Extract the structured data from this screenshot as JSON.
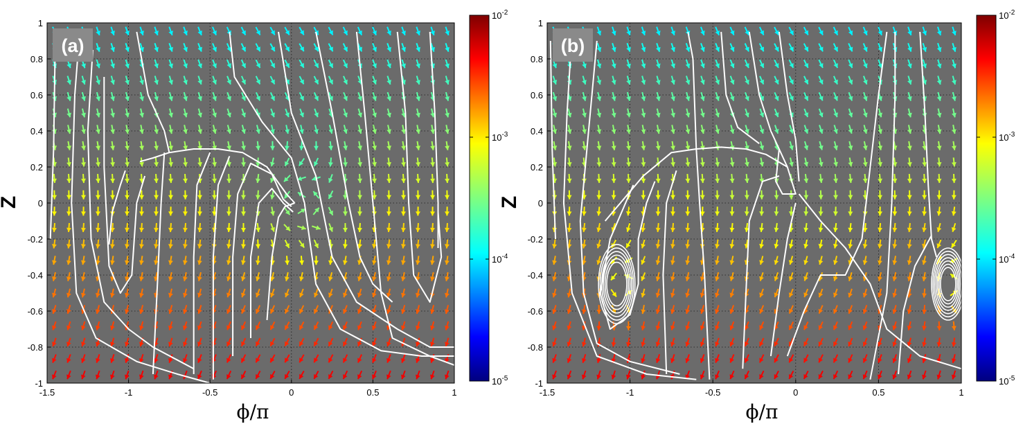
{
  "chart_data": [
    {
      "type": "quiver-streamplot",
      "panel_label": "(a)",
      "xlabel": "ϕ/π",
      "ylabel": "Z",
      "xlim": [
        -1.5,
        1
      ],
      "ylim": [
        -1,
        1
      ],
      "x_ticks": [
        "-1.5",
        "-1",
        "-0.5",
        "0",
        "0.5",
        "1"
      ],
      "y_ticks": [
        "-1",
        "-0.8",
        "-0.6",
        "-0.4",
        "-0.2",
        "0",
        "0.2",
        "0.4",
        "0.6",
        "0.8",
        "1"
      ],
      "grid": true,
      "background_color": "#6b6b6b",
      "streamline_color": "#ffffff",
      "features": {
        "spiral_focus": [
          0.02,
          0.0
        ],
        "saddle_points": [
          [
            -1.1,
            0.18
          ],
          [
            0.9,
            0.0
          ]
        ],
        "ridge_peak": [
          -0.45,
          0.3
        ]
      },
      "colorbar": {
        "scale": "log",
        "range": [
          1e-05,
          0.01
        ],
        "ticks": [
          "10^-2",
          "10^-3",
          "10^-4",
          "10^-5"
        ],
        "colormap": "jet"
      }
    },
    {
      "type": "quiver-streamplot",
      "panel_label": "(b)",
      "xlabel": "ϕ/π",
      "ylabel": "Z",
      "xlim": [
        -1.5,
        1
      ],
      "ylim": [
        -1,
        1
      ],
      "x_ticks": [
        "-1.5",
        "-1",
        "-0.5",
        "0",
        "0.5",
        "1"
      ],
      "y_ticks": [
        "-1",
        "-0.8",
        "-0.6",
        "-0.4",
        "-0.2",
        "0",
        "0.2",
        "0.4",
        "0.6",
        "0.8",
        "1"
      ],
      "grid": true,
      "background_color": "#6b6b6b",
      "streamline_color": "#ffffff",
      "features": {
        "centers": [
          [
            -1.08,
            -0.45
          ],
          [
            0.92,
            -0.45
          ]
        ],
        "saddle_points": [
          [
            -0.6,
            0.3
          ],
          [
            0.0,
            0.05
          ]
        ],
        "ridge_peak": [
          -0.45,
          0.3
        ]
      },
      "colorbar": {
        "scale": "log",
        "range": [
          1e-05,
          0.01
        ],
        "ticks": [
          "10^-2",
          "10^-3",
          "10^-4",
          "10^-5"
        ],
        "colormap": "jet"
      }
    }
  ]
}
